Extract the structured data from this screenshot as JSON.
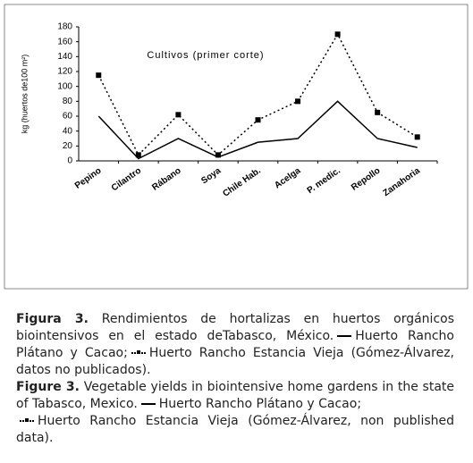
{
  "chart_data": {
    "type": "line",
    "title": "Cultivos (primer corte)",
    "y_label": "kg (huertos de100 m²)",
    "categories": [
      "Pepino",
      "Cilantro",
      "Rábano",
      "Soya",
      "Chile Hab.",
      "Acelga",
      "P. medic.",
      "Repollo",
      "Zanahoria"
    ],
    "series": [
      {
        "name": "Huerto Rancho Plátano y Cacao",
        "color": "#000000",
        "style": "solid",
        "values": [
          60,
          3,
          30,
          5,
          25,
          30,
          80,
          30,
          18
        ]
      },
      {
        "name": "Huerto Rancho Estancia Vieja",
        "color": "#000000",
        "style": "dotted",
        "values": [
          115,
          8,
          62,
          8,
          55,
          80,
          170,
          65,
          32
        ]
      }
    ],
    "ylim": [
      0,
      180
    ],
    "yticks": [
      0,
      20,
      40,
      60,
      80,
      100,
      120,
      140,
      160,
      180
    ],
    "grid": false
  },
  "caption": {
    "es": {
      "label": "Figura 3.",
      "text": "Rendimientos de hortalizas en huertos orgánicos biointensivos en el estado deTabasco, México.",
      "sep": ";",
      "source": "(Gómez-Álvarez, datos no publicados)."
    },
    "en": {
      "label": "Figure 3.",
      "text": "Vegetable yields in biointensive home gardens in the state of Tabasco, Mexico.",
      "sep": ";",
      "source": "(Gómez-Álvarez, non published data)."
    }
  }
}
